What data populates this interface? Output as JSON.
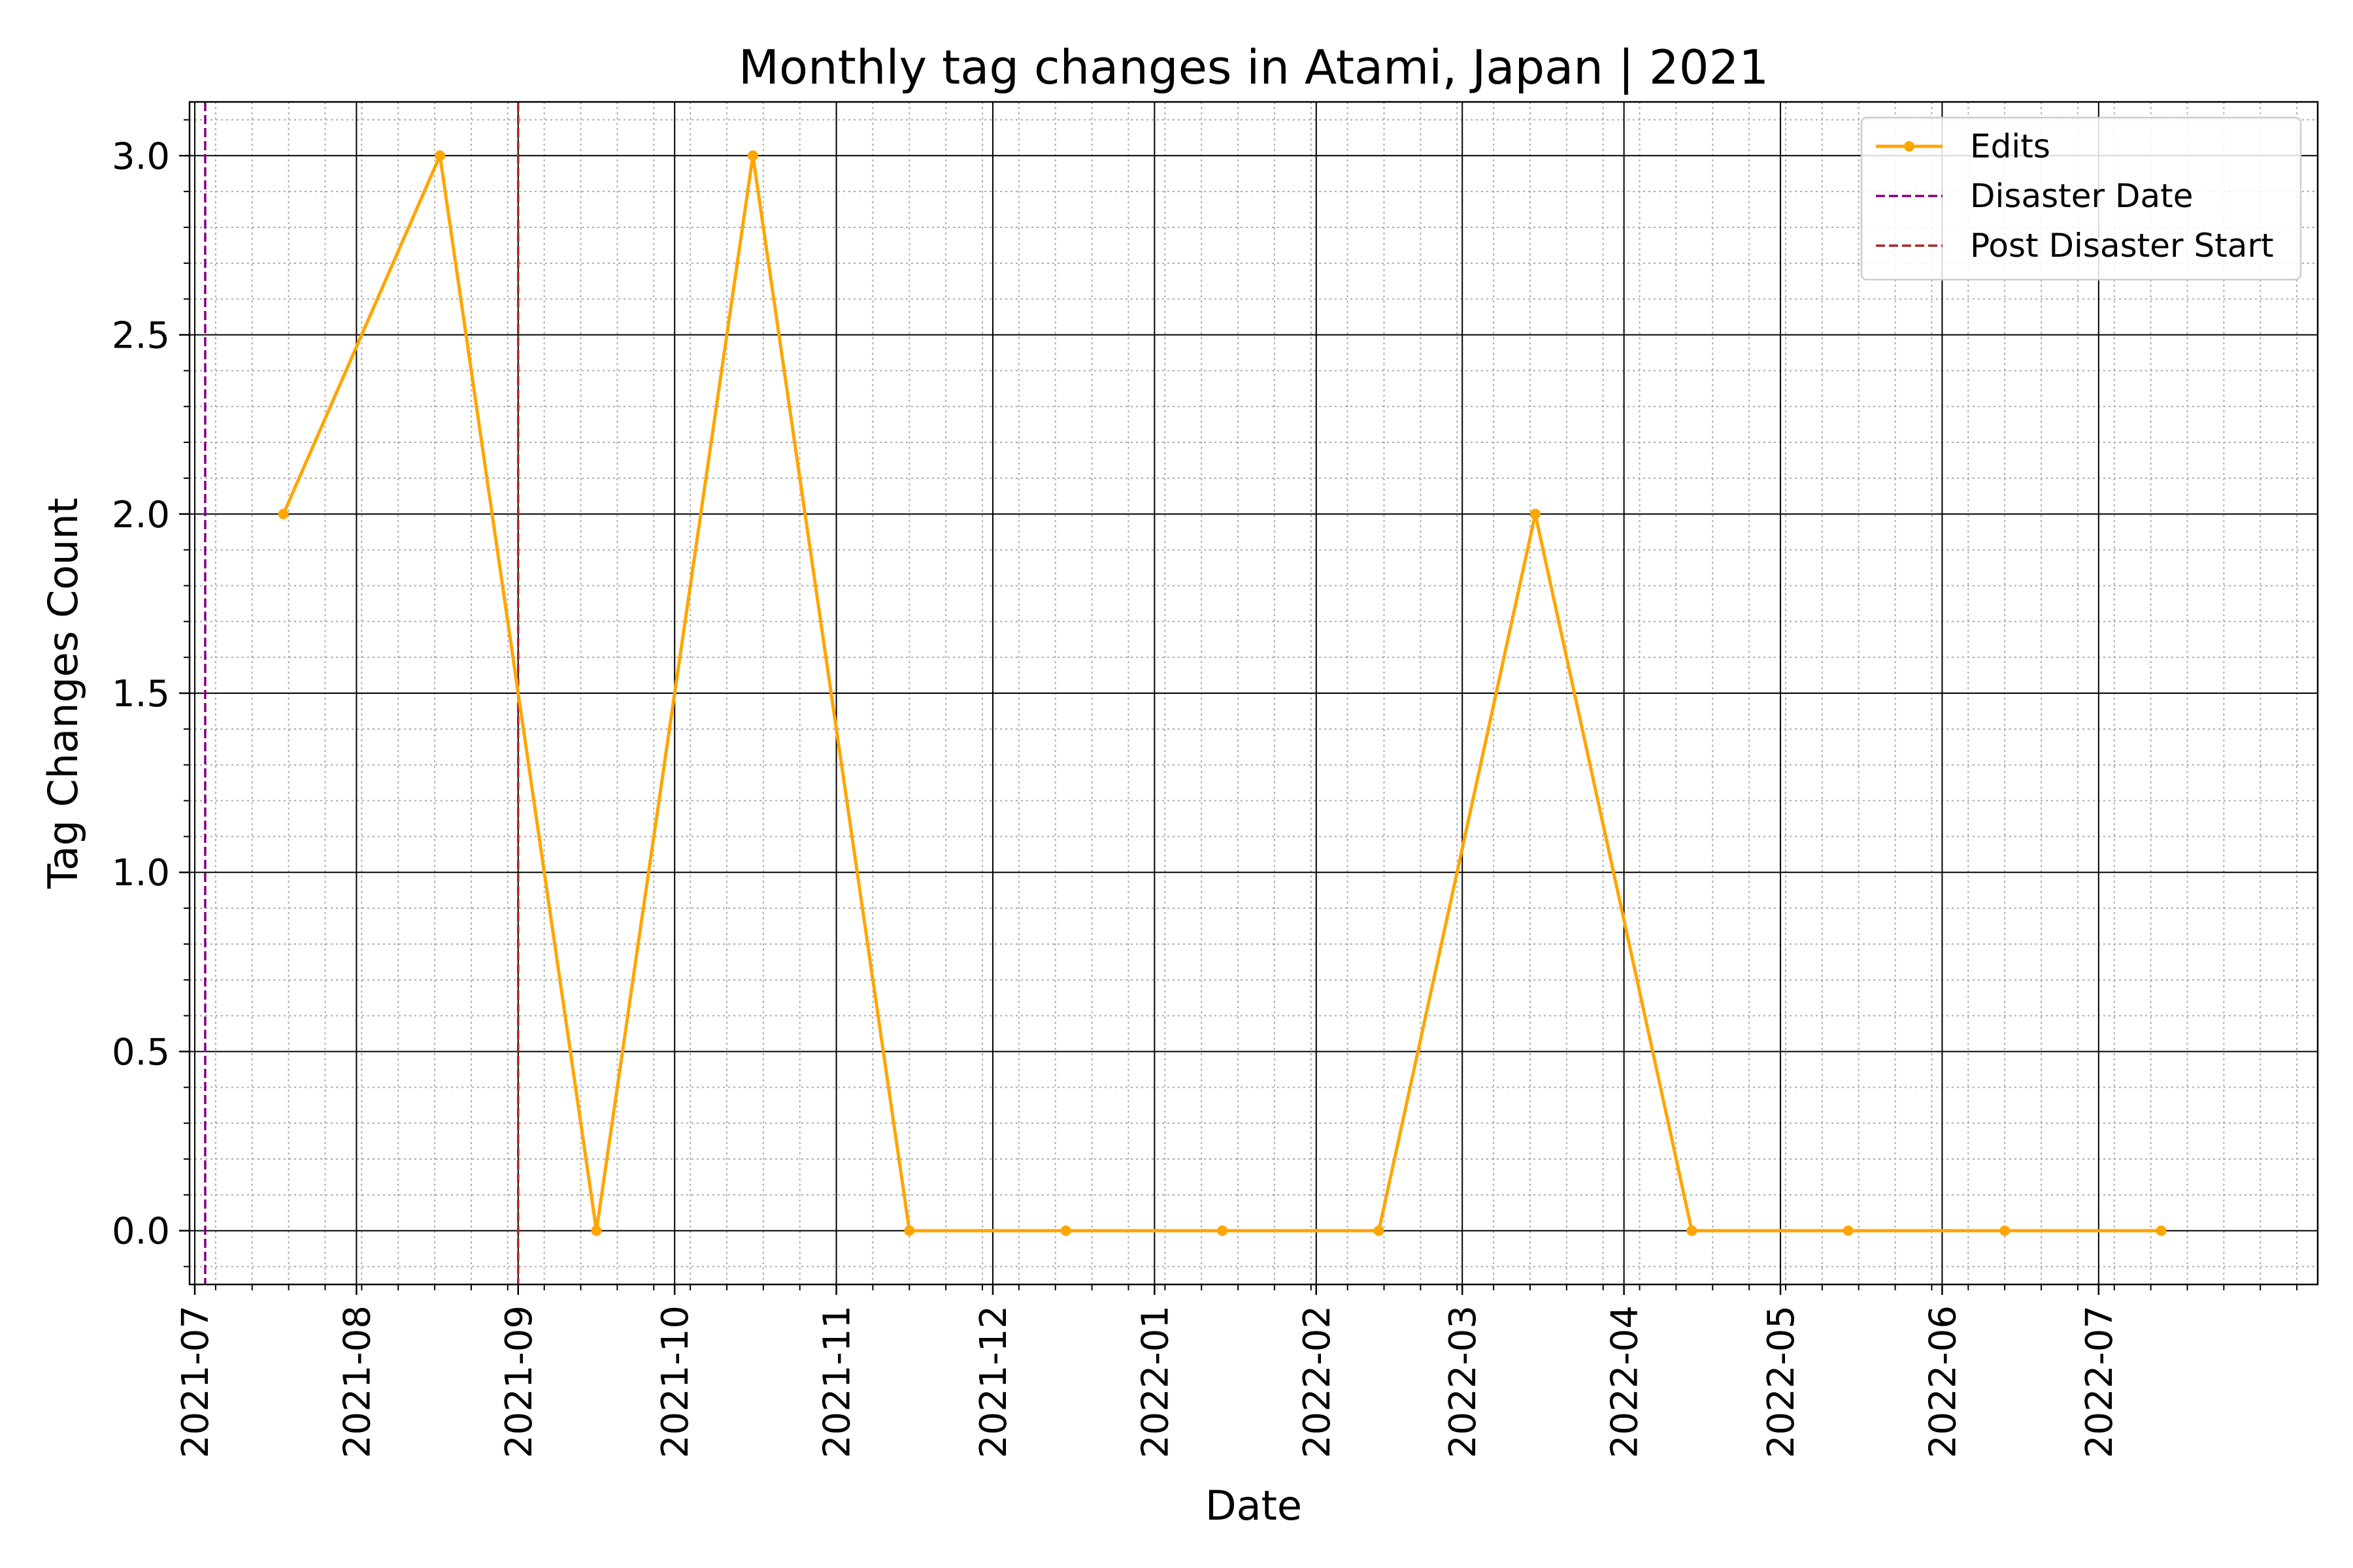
{
  "chart_data": {
    "type": "line",
    "title": "Monthly tag changes in Atami, Japan | 2021",
    "xlabel": "Date",
    "ylabel": "Tag Changes Count",
    "xlim": [
      "2021-06-30",
      "2022-08-12"
    ],
    "ylim": [
      -0.15,
      3.15
    ],
    "x_ticks": [
      "2021-07",
      "2021-08",
      "2021-09",
      "2021-10",
      "2021-11",
      "2021-12",
      "2022-01",
      "2022-02",
      "2022-03",
      "2022-04",
      "2022-05",
      "2022-06",
      "2022-07"
    ],
    "y_ticks": [
      0.0,
      0.5,
      1.0,
      1.5,
      2.0,
      2.5,
      3.0
    ],
    "y_tick_labels": [
      "0.0",
      "0.5",
      "1.0",
      "1.5",
      "2.0",
      "2.5",
      "3.0"
    ],
    "grid": true,
    "minor_grid": true,
    "legend_position": "top-right",
    "series": [
      {
        "name": "Edits",
        "color": "#FFA500",
        "marker": "circle",
        "x": [
          "2021-07-18",
          "2021-08-17",
          "2021-09-16",
          "2021-10-16",
          "2021-11-15",
          "2021-12-15",
          "2022-01-14",
          "2022-02-13",
          "2022-03-15",
          "2022-04-14",
          "2022-05-14",
          "2022-06-13",
          "2022-07-13"
        ],
        "values": [
          2,
          3,
          0,
          3,
          0,
          0,
          0,
          0,
          2,
          0,
          0,
          0,
          0
        ]
      }
    ],
    "vlines": [
      {
        "name": "Disaster Date",
        "x": "2021-07-03",
        "color": "#800080",
        "style": "dashed"
      },
      {
        "name": "Post Disaster Start",
        "x": "2021-09-01",
        "color": "#B22222",
        "style": "dashed"
      }
    ]
  }
}
